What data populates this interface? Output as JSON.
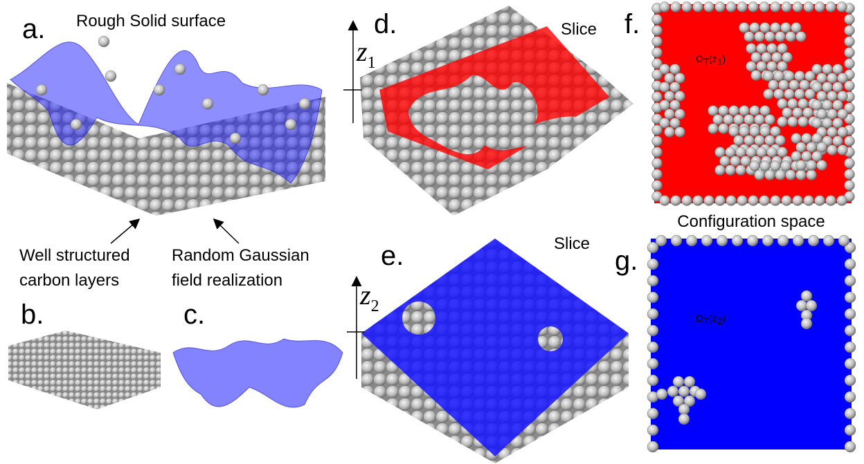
{
  "panel_a": {
    "label": "a.",
    "title": "Rough Solid surface",
    "annotation_left": [
      "Well structured",
      "carbon layers"
    ],
    "annotation_right": [
      "Random Gaussian",
      "field realization"
    ]
  },
  "panel_b": {
    "label": "b."
  },
  "panel_c": {
    "label": "c."
  },
  "panel_d": {
    "label": "d.",
    "caption": "Slice",
    "axis": {
      "symbol": "z",
      "subscript": "1"
    }
  },
  "panel_e": {
    "label": "e.",
    "caption": "Slice",
    "axis": {
      "symbol": "z",
      "subscript": "2"
    }
  },
  "panel_f": {
    "label": "f.",
    "region": {
      "symbol": "Ω",
      "sub": "T",
      "open": "(z",
      "arg_sub": "1",
      "close": ")"
    }
  },
  "panel_g": {
    "label": "g.",
    "title": "Configuration space",
    "region": {
      "symbol": "Ω",
      "sub": "T",
      "open": "(z",
      "arg_sub": "2",
      "close": ")"
    }
  }
}
